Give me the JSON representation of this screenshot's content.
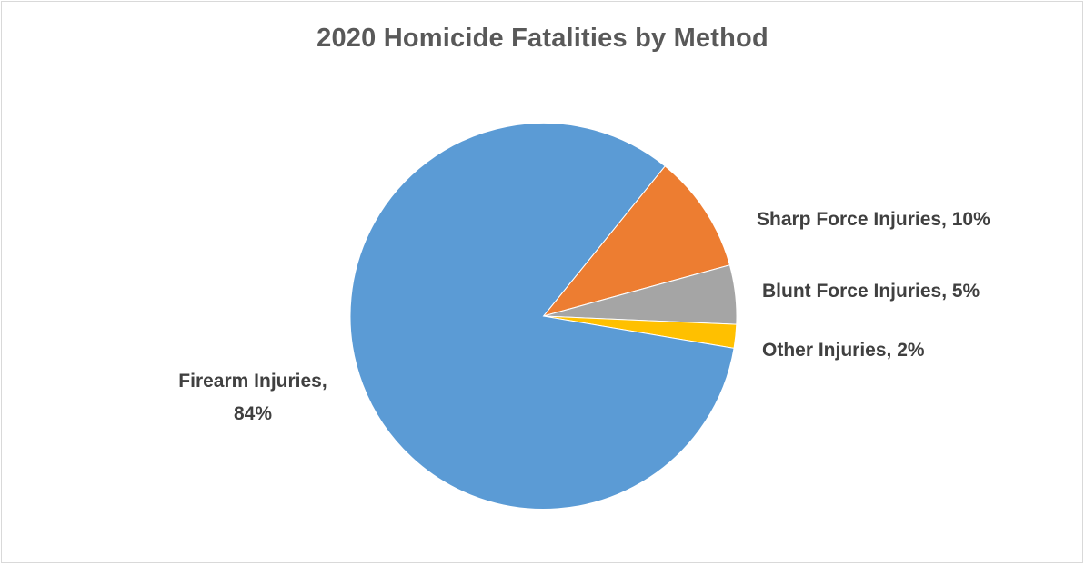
{
  "chart_data": {
    "type": "pie",
    "title": "2020 Homicide Fatalities by Method",
    "slices": [
      {
        "label": "Firearm Injuries",
        "value": 84,
        "value_label": "84%",
        "color": "#5B9BD5"
      },
      {
        "label": "Sharp Force Injuries",
        "value": 10,
        "value_label": "10%",
        "color": "#ED7D31"
      },
      {
        "label": "Blunt Force Injuries",
        "value": 5,
        "value_label": "5%",
        "color": "#A5A5A5"
      },
      {
        "label": "Other Injuries",
        "value": 2,
        "value_label": "2%",
        "color": "#FFC000"
      }
    ],
    "legend": "none",
    "data_labels": "outside"
  }
}
